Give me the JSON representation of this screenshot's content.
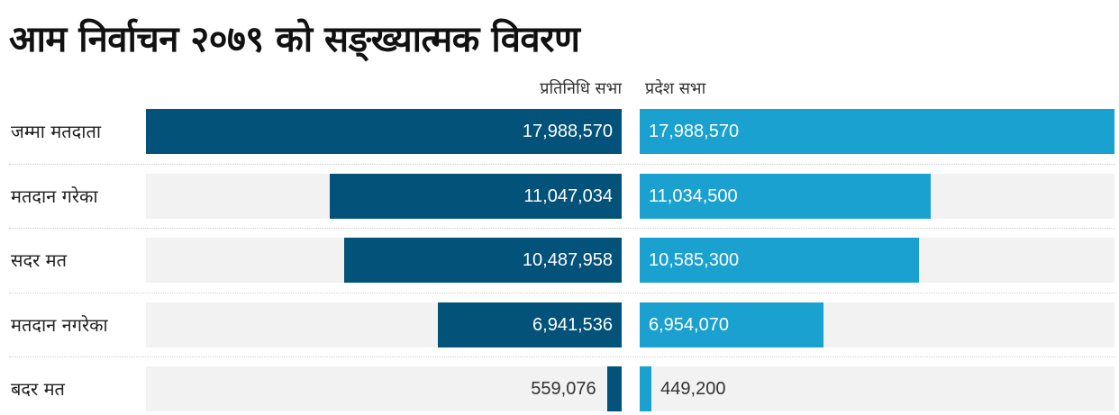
{
  "title": "आम निर्वाचन २०७९ को सङ्ख्यात्मक विवरण",
  "chart_data": {
    "type": "bar",
    "orientation": "horizontal-mirrored",
    "title": "आम निर्वाचन २०७९ को सङ्ख्यात्मक विवरण",
    "categories": [
      "जम्मा मतदाता",
      "मतदान गरेका",
      "सदर मत",
      "मतदान नगरेका",
      "बदर मत"
    ],
    "series": [
      {
        "name": "प्रतिनिधि सभा",
        "values": [
          17988570,
          11047034,
          10487958,
          6941536,
          559076
        ],
        "labels": [
          "17,988,570",
          "11,047,034",
          "10,487,958",
          "6,941,536",
          "559,076"
        ],
        "color": "#02527a"
      },
      {
        "name": "प्रदेश सभा",
        "values": [
          17988570,
          11034500,
          10585300,
          6954070,
          449200
        ],
        "labels": [
          "17,988,570",
          "11,034,500",
          "10,585,300",
          "6,954,070",
          "449,200"
        ],
        "color": "#1aa1cf"
      }
    ],
    "xlim": [
      0,
      17988570
    ]
  }
}
